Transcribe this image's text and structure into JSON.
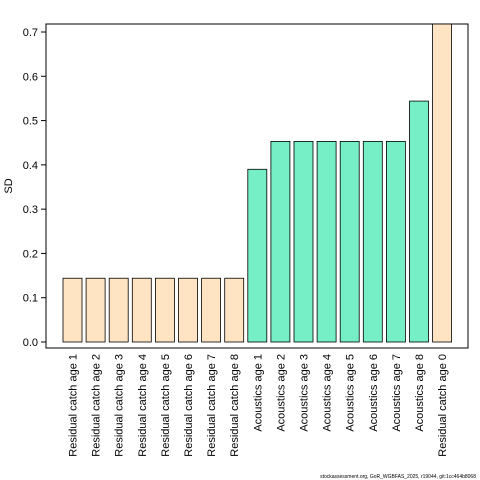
{
  "chart_data": {
    "type": "bar",
    "title": "",
    "xlabel": "",
    "ylabel": "SD",
    "ylim": [
      0,
      0.72
    ],
    "yticks": [
      "0.0",
      "0.1",
      "0.2",
      "0.3",
      "0.4",
      "0.5",
      "0.6",
      "0.7"
    ],
    "grid": false,
    "categories": [
      "Residual catch age 1",
      "Residual catch age 2",
      "Residual catch age 3",
      "Residual catch age 4",
      "Residual catch age 5",
      "Residual catch age 6",
      "Residual catch age 7",
      "Residual catch age 8",
      "Acoustics age 1",
      "Acoustics age 2",
      "Acoustics age 3",
      "Acoustics age 4",
      "Acoustics age 5",
      "Acoustics age 6",
      "Acoustics age 7",
      "Acoustics age 8",
      "Residual catch age 0"
    ],
    "values": [
      0.144,
      0.144,
      0.144,
      0.144,
      0.144,
      0.144,
      0.144,
      0.144,
      0.39,
      0.453,
      0.453,
      0.453,
      0.453,
      0.453,
      0.453,
      0.544,
      0.718
    ],
    "bar_colors": [
      "#FFE4C4",
      "#FFE4C4",
      "#FFE4C4",
      "#FFE4C4",
      "#FFE4C4",
      "#FFE4C4",
      "#FFE4C4",
      "#FFE4C4",
      "#76EEC6",
      "#76EEC6",
      "#76EEC6",
      "#76EEC6",
      "#76EEC6",
      "#76EEC6",
      "#76EEC6",
      "#76EEC6",
      "#FFE4C4"
    ]
  },
  "footer": "stockassessment.org, GoR_WGBFAS_2025, r19044, git:1cc464b8068"
}
